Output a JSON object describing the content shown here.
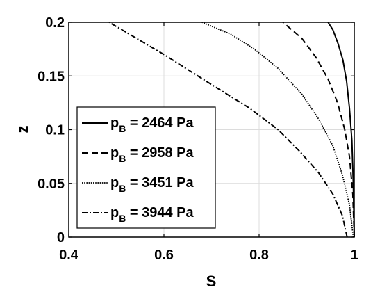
{
  "chart_data": {
    "type": "line",
    "xlabel": "S",
    "ylabel": "z",
    "xlim": [
      0.4,
      1.0
    ],
    "ylim": [
      0,
      0.2
    ],
    "x_ticks": [
      "0.4",
      "0.6",
      "0.8",
      "1"
    ],
    "y_ticks": [
      "0",
      "0.05",
      "0.1",
      "0.15",
      "0.2"
    ],
    "grid": true,
    "legend_position": "lower-left",
    "series": [
      {
        "name_main": "p",
        "name_sub": "B",
        "name_rest": " = 2464 Pa",
        "dash": "solid",
        "x": [
          1.0,
          0.998,
          0.995,
          0.99,
          0.984,
          0.976,
          0.966,
          0.955,
          0.945
        ],
        "y": [
          0.0,
          0.05,
          0.09,
          0.12,
          0.145,
          0.165,
          0.18,
          0.193,
          0.2
        ]
      },
      {
        "name_main": "p",
        "name_sub": "B",
        "name_rest": " = 2958 Pa",
        "dash": "dashed",
        "x": [
          1.0,
          0.997,
          0.99,
          0.98,
          0.965,
          0.945,
          0.92,
          0.89,
          0.85
        ],
        "y": [
          0.0,
          0.04,
          0.075,
          0.1,
          0.125,
          0.147,
          0.167,
          0.185,
          0.2
        ]
      },
      {
        "name_main": "p",
        "name_sub": "B",
        "name_rest": " = 3451 Pa",
        "dash": "dotted",
        "x": [
          0.998,
          0.99,
          0.975,
          0.955,
          0.925,
          0.89,
          0.84,
          0.79,
          0.74,
          0.68
        ],
        "y": [
          0.0,
          0.03,
          0.058,
          0.085,
          0.11,
          0.133,
          0.157,
          0.175,
          0.189,
          0.2
        ]
      },
      {
        "name_main": "p",
        "name_sub": "B",
        "name_rest": " = 3944 Pa",
        "dash": "dashdot",
        "x": [
          0.985,
          0.975,
          0.955,
          0.925,
          0.885,
          0.84,
          0.78,
          0.7,
          0.6,
          0.485
        ],
        "y": [
          0.0,
          0.02,
          0.04,
          0.06,
          0.08,
          0.1,
          0.12,
          0.142,
          0.17,
          0.2
        ]
      }
    ]
  }
}
